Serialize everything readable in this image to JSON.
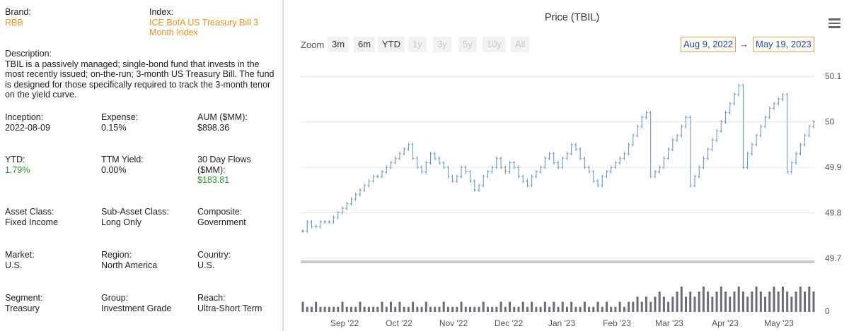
{
  "fund": {
    "brand_label": "Brand:",
    "brand": "RBB",
    "index_label": "Index:",
    "index": "ICE BofA US Treasury Bill 3 Month Index",
    "description_label": "Description:",
    "description": "TBIL is a passively managed; single-bond fund that invests in the most recently issued; on-the-run; 3-month US Treasury Bill. The fund is designed for those specifically required to track the 3-month tenor on the yield curve.",
    "inception_label": "Inception:",
    "inception": "2022-08-09",
    "expense_label": "Expense:",
    "expense": "0.15%",
    "aum_label": "AUM ($MM):",
    "aum": "$898.36",
    "ytd_label": "YTD:",
    "ytd": "1.79%",
    "ttm_label": "TTM Yield:",
    "ttm": "0.00%",
    "flows_label": "30 Day Flows ($MM):",
    "flows": "$183.81",
    "asset_class_label": "Asset Class:",
    "asset_class": "Fixed Income",
    "sub_asset_label": "Sub-Asset Class:",
    "sub_asset": "Long Only",
    "composite_label": "Composite:",
    "composite": "Government",
    "market_label": "Market:",
    "market": "U.S.",
    "region_label": "Region:",
    "region": "North America",
    "country_label": "Country:",
    "country": "U.S.",
    "segment_label": "Segment:",
    "segment": "Treasury",
    "group_label": "Group:",
    "group": "Investment Grade",
    "reach_label": "Reach:",
    "reach": "Ultra-Short Term"
  },
  "toolbar": {
    "zoom_label": "Zoom",
    "zoom_buttons": [
      "3m",
      "6m",
      "YTD",
      "1y",
      "3y",
      "5y",
      "10y",
      "All"
    ],
    "from_date": "Aug 9, 2022",
    "arrow": "→",
    "to_date": "May 19, 2023",
    "menu_icon": "hamburger-menu-icon"
  },
  "colors": {
    "bar": "#5b8fd0",
    "volume": "#6b6b7a",
    "accent": "#ef8f1e",
    "positive": "#2f9a2f"
  },
  "chart_data": {
    "type": "ohlc",
    "title": "Price (TBIL)",
    "x_ticks": [
      "Sep '22",
      "Oct '22",
      "Nov '22",
      "Dec '22",
      "Jan '23",
      "Feb '23",
      "Mar '23",
      "Apr '23",
      "May '23"
    ],
    "y_ticks": [
      "50.1",
      "50",
      "49.9",
      "49.8",
      "49.7"
    ],
    "ylim": [
      49.7,
      50.15
    ],
    "volume_tick": "0",
    "price_series": [
      49.76,
      49.78,
      49.77,
      49.77,
      49.78,
      49.78,
      49.78,
      49.79,
      49.8,
      49.81,
      49.82,
      49.83,
      49.84,
      49.85,
      49.86,
      49.87,
      49.88,
      49.88,
      49.89,
      49.9,
      49.91,
      49.92,
      49.93,
      49.94,
      49.95,
      49.92,
      49.9,
      49.89,
      49.91,
      49.93,
      49.92,
      49.91,
      49.9,
      49.88,
      49.87,
      49.88,
      49.9,
      49.89,
      49.87,
      49.85,
      49.86,
      49.88,
      49.89,
      49.9,
      49.92,
      49.9,
      49.89,
      49.91,
      49.9,
      49.88,
      49.87,
      49.86,
      49.88,
      49.89,
      49.9,
      49.92,
      49.93,
      49.91,
      49.9,
      49.92,
      49.93,
      49.95,
      49.94,
      49.92,
      49.9,
      49.89,
      49.87,
      49.86,
      49.88,
      49.89,
      49.9,
      49.91,
      49.92,
      49.93,
      49.95,
      49.97,
      49.99,
      50.01,
      50.02,
      49.88,
      49.89,
      49.9,
      49.92,
      49.94,
      49.96,
      49.97,
      49.99,
      50.01,
      49.86,
      49.88,
      49.9,
      49.92,
      49.94,
      49.96,
      49.98,
      50.0,
      50.02,
      50.04,
      50.06,
      50.08,
      49.9,
      49.93,
      49.95,
      49.97,
      49.99,
      50.01,
      50.03,
      50.04,
      50.05,
      50.06,
      49.89,
      49.91,
      49.93,
      49.95,
      49.97,
      49.99,
      50.0
    ],
    "volume_series": [
      2,
      1,
      1,
      2,
      1,
      1,
      1,
      1,
      1,
      2,
      1,
      1,
      1,
      2,
      1,
      1,
      1,
      1,
      2,
      1,
      2,
      1,
      2,
      1,
      1,
      2,
      1,
      1,
      2,
      1,
      1,
      1,
      2,
      1,
      1,
      1,
      2,
      1,
      1,
      1,
      1,
      2,
      1,
      1,
      1,
      2,
      1,
      2,
      1,
      1,
      2,
      1,
      2,
      1,
      1,
      2,
      1,
      2,
      1,
      2,
      1,
      2,
      1,
      1,
      2,
      1,
      1,
      2,
      1,
      2,
      1,
      1,
      2,
      1,
      2,
      2,
      3,
      2,
      3,
      2,
      3,
      4,
      3,
      2,
      3,
      4,
      5,
      3,
      4,
      3,
      4,
      5,
      4,
      3,
      4,
      5,
      4,
      3,
      4,
      5,
      4,
      3,
      4,
      5,
      4,
      3,
      4,
      5,
      4,
      5,
      4,
      3,
      4,
      5,
      4,
      5,
      4
    ]
  }
}
